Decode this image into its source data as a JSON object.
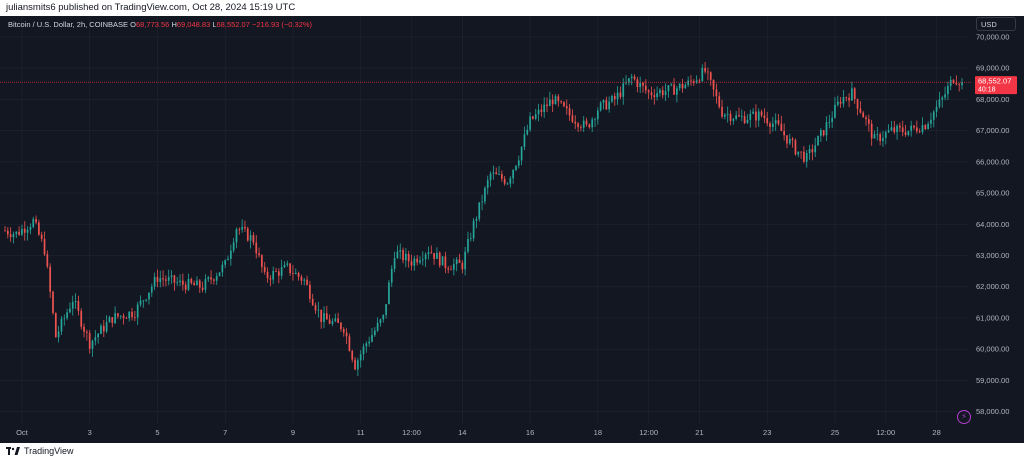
{
  "header": {
    "published_line": "juliansmits6 published on TradingView.com, Oct 28, 2024 15:19 UTC"
  },
  "legend": {
    "symbol": "Bitcoin / U.S. Dollar, 2h, COINBASE",
    "open_label": "O",
    "open": "68,773.56",
    "high_label": "H",
    "high": "69,048.83",
    "low_label": "L",
    "low": "68,552.07",
    "change": "−216.93 (−0.32%)"
  },
  "currency_button": "USD",
  "last_price": {
    "value": "68,552.07",
    "countdown": "40:18",
    "color": "#f23645"
  },
  "footer": {
    "brand": "TradingView"
  },
  "colors": {
    "up": "#26a69a",
    "down": "#ef5350",
    "background": "#131722",
    "grid": "#1f2330",
    "text": "#b2b5be"
  },
  "chart_data": {
    "type": "candlestick",
    "symbol": "BTCUSD",
    "interval": "2h",
    "y_ticks": [
      "58,000.00",
      "59,000.00",
      "60,000.00",
      "61,000.00",
      "62,000.00",
      "63,000.00",
      "64,000.00",
      "65,000.00",
      "66,000.00",
      "67,000.00",
      "68,000.00",
      "69,000.00",
      "70,000.00"
    ],
    "y_tick_values": [
      58000,
      59000,
      60000,
      61000,
      62000,
      63000,
      64000,
      65000,
      66000,
      67000,
      68000,
      69000,
      70000
    ],
    "ylim": [
      57700,
      70350
    ],
    "x_ticks": [
      {
        "label": "Oct",
        "t": 6
      },
      {
        "label": "3",
        "t": 30
      },
      {
        "label": "5",
        "t": 54
      },
      {
        "label": "7",
        "t": 78
      },
      {
        "label": "9",
        "t": 102
      },
      {
        "label": "11",
        "t": 126
      },
      {
        "label": "12:00",
        "t": 144
      },
      {
        "label": "14",
        "t": 162
      },
      {
        "label": "16",
        "t": 186
      },
      {
        "label": "18",
        "t": 210
      },
      {
        "label": "12:00",
        "t": 228
      },
      {
        "label": "21",
        "t": 246
      },
      {
        "label": "23",
        "t": 270
      },
      {
        "label": "25",
        "t": 294
      },
      {
        "label": "12:00",
        "t": 312
      },
      {
        "label": "28",
        "t": 330
      }
    ],
    "x_range": [
      0,
      339
    ],
    "key_closes": [
      {
        "t": 0,
        "p": 63800
      },
      {
        "t": 4,
        "p": 63700
      },
      {
        "t": 10,
        "p": 64100
      },
      {
        "t": 14,
        "p": 63200
      },
      {
        "t": 18,
        "p": 60400
      },
      {
        "t": 24,
        "p": 61600
      },
      {
        "t": 30,
        "p": 60200
      },
      {
        "t": 38,
        "p": 61000
      },
      {
        "t": 46,
        "p": 61200
      },
      {
        "t": 54,
        "p": 62300
      },
      {
        "t": 62,
        "p": 62100
      },
      {
        "t": 70,
        "p": 62000
      },
      {
        "t": 78,
        "p": 62700
      },
      {
        "t": 82,
        "p": 63900
      },
      {
        "t": 88,
        "p": 63500
      },
      {
        "t": 92,
        "p": 62300
      },
      {
        "t": 100,
        "p": 62600
      },
      {
        "t": 106,
        "p": 62200
      },
      {
        "t": 112,
        "p": 61000
      },
      {
        "t": 120,
        "p": 60700
      },
      {
        "t": 124,
        "p": 59500
      },
      {
        "t": 128,
        "p": 60200
      },
      {
        "t": 134,
        "p": 61000
      },
      {
        "t": 138,
        "p": 63100
      },
      {
        "t": 144,
        "p": 62800
      },
      {
        "t": 150,
        "p": 63200
      },
      {
        "t": 156,
        "p": 62700
      },
      {
        "t": 162,
        "p": 62700
      },
      {
        "t": 166,
        "p": 64000
      },
      {
        "t": 172,
        "p": 65600
      },
      {
        "t": 178,
        "p": 65400
      },
      {
        "t": 182,
        "p": 66200
      },
      {
        "t": 186,
        "p": 67300
      },
      {
        "t": 194,
        "p": 68000
      },
      {
        "t": 200,
        "p": 67500
      },
      {
        "t": 206,
        "p": 67100
      },
      {
        "t": 210,
        "p": 67700
      },
      {
        "t": 216,
        "p": 68000
      },
      {
        "t": 222,
        "p": 68700
      },
      {
        "t": 228,
        "p": 68200
      },
      {
        "t": 236,
        "p": 68300
      },
      {
        "t": 242,
        "p": 68500
      },
      {
        "t": 248,
        "p": 68900
      },
      {
        "t": 254,
        "p": 67600
      },
      {
        "t": 260,
        "p": 67400
      },
      {
        "t": 268,
        "p": 67500
      },
      {
        "t": 274,
        "p": 67100
      },
      {
        "t": 280,
        "p": 66400
      },
      {
        "t": 284,
        "p": 66100
      },
      {
        "t": 290,
        "p": 67000
      },
      {
        "t": 296,
        "p": 68000
      },
      {
        "t": 300,
        "p": 68200
      },
      {
        "t": 304,
        "p": 67500
      },
      {
        "t": 308,
        "p": 66700
      },
      {
        "t": 314,
        "p": 67000
      },
      {
        "t": 320,
        "p": 67000
      },
      {
        "t": 326,
        "p": 67200
      },
      {
        "t": 332,
        "p": 68000
      },
      {
        "t": 336,
        "p": 68700
      },
      {
        "t": 339,
        "p": 68552
      }
    ],
    "last_close": 68552.07
  }
}
